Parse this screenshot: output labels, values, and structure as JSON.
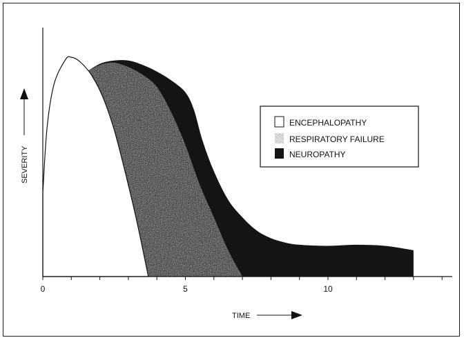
{
  "chart_data": {
    "type": "area",
    "title": "",
    "xlabel": "TIME",
    "ylabel": "SEVERITY",
    "xlim": [
      0,
      14.5
    ],
    "ylim": [
      0,
      1
    ],
    "x_ticks": [
      0,
      1,
      2,
      3,
      4,
      5,
      6,
      7,
      8,
      9,
      10,
      11,
      12,
      13,
      14
    ],
    "x_tick_labels": [
      {
        "x": 0,
        "label": "0"
      },
      {
        "x": 5,
        "label": "5"
      },
      {
        "x": 10,
        "label": "10"
      }
    ],
    "legend_position": "right",
    "series": [
      {
        "name": "NEUROPATHY",
        "fill": "#141414",
        "points": [
          [
            1.5,
            0.93
          ],
          [
            2.0,
            0.97
          ],
          [
            2.5,
            0.985
          ],
          [
            3.0,
            0.985
          ],
          [
            3.5,
            0.965
          ],
          [
            4.0,
            0.935
          ],
          [
            4.5,
            0.895
          ],
          [
            5.0,
            0.84
          ],
          [
            5.3,
            0.76
          ],
          [
            5.6,
            0.62
          ],
          [
            6.0,
            0.48
          ],
          [
            6.5,
            0.35
          ],
          [
            7.0,
            0.27
          ],
          [
            7.5,
            0.21
          ],
          [
            8.0,
            0.175
          ],
          [
            8.5,
            0.155
          ],
          [
            9.0,
            0.145
          ],
          [
            10.0,
            0.14
          ],
          [
            11.0,
            0.145
          ],
          [
            12.0,
            0.14
          ],
          [
            13.0,
            0.12
          ]
        ]
      },
      {
        "name": "RESPIRATORY FAILURE",
        "fill": "#8a8a8a",
        "points": [
          [
            1.5,
            0.93
          ],
          [
            2.0,
            0.965
          ],
          [
            2.5,
            0.975
          ],
          [
            3.0,
            0.955
          ],
          [
            3.5,
            0.92
          ],
          [
            4.0,
            0.865
          ],
          [
            4.5,
            0.75
          ],
          [
            5.0,
            0.6
          ],
          [
            5.5,
            0.42
          ],
          [
            6.0,
            0.27
          ],
          [
            6.5,
            0.12
          ],
          [
            7.0,
            0.0
          ]
        ]
      },
      {
        "name": "ENCEPHALOPATHY",
        "fill": "#ffffff",
        "points": [
          [
            0.0,
            0.38
          ],
          [
            0.15,
            0.68
          ],
          [
            0.4,
            0.88
          ],
          [
            0.8,
            0.99
          ],
          [
            1.0,
            1.0
          ],
          [
            1.3,
            0.98
          ],
          [
            1.7,
            0.92
          ],
          [
            2.1,
            0.82
          ],
          [
            2.5,
            0.67
          ],
          [
            2.9,
            0.47
          ],
          [
            3.3,
            0.25
          ],
          [
            3.7,
            0.0
          ]
        ]
      }
    ],
    "legend": [
      {
        "label": "ENCEPHALOPATHY",
        "fill": "#ffffff"
      },
      {
        "label": "RESPIRATORY FAILURE",
        "fill": "#8a8a8a"
      },
      {
        "label": "NEUROPATHY",
        "fill": "#141414"
      }
    ]
  }
}
